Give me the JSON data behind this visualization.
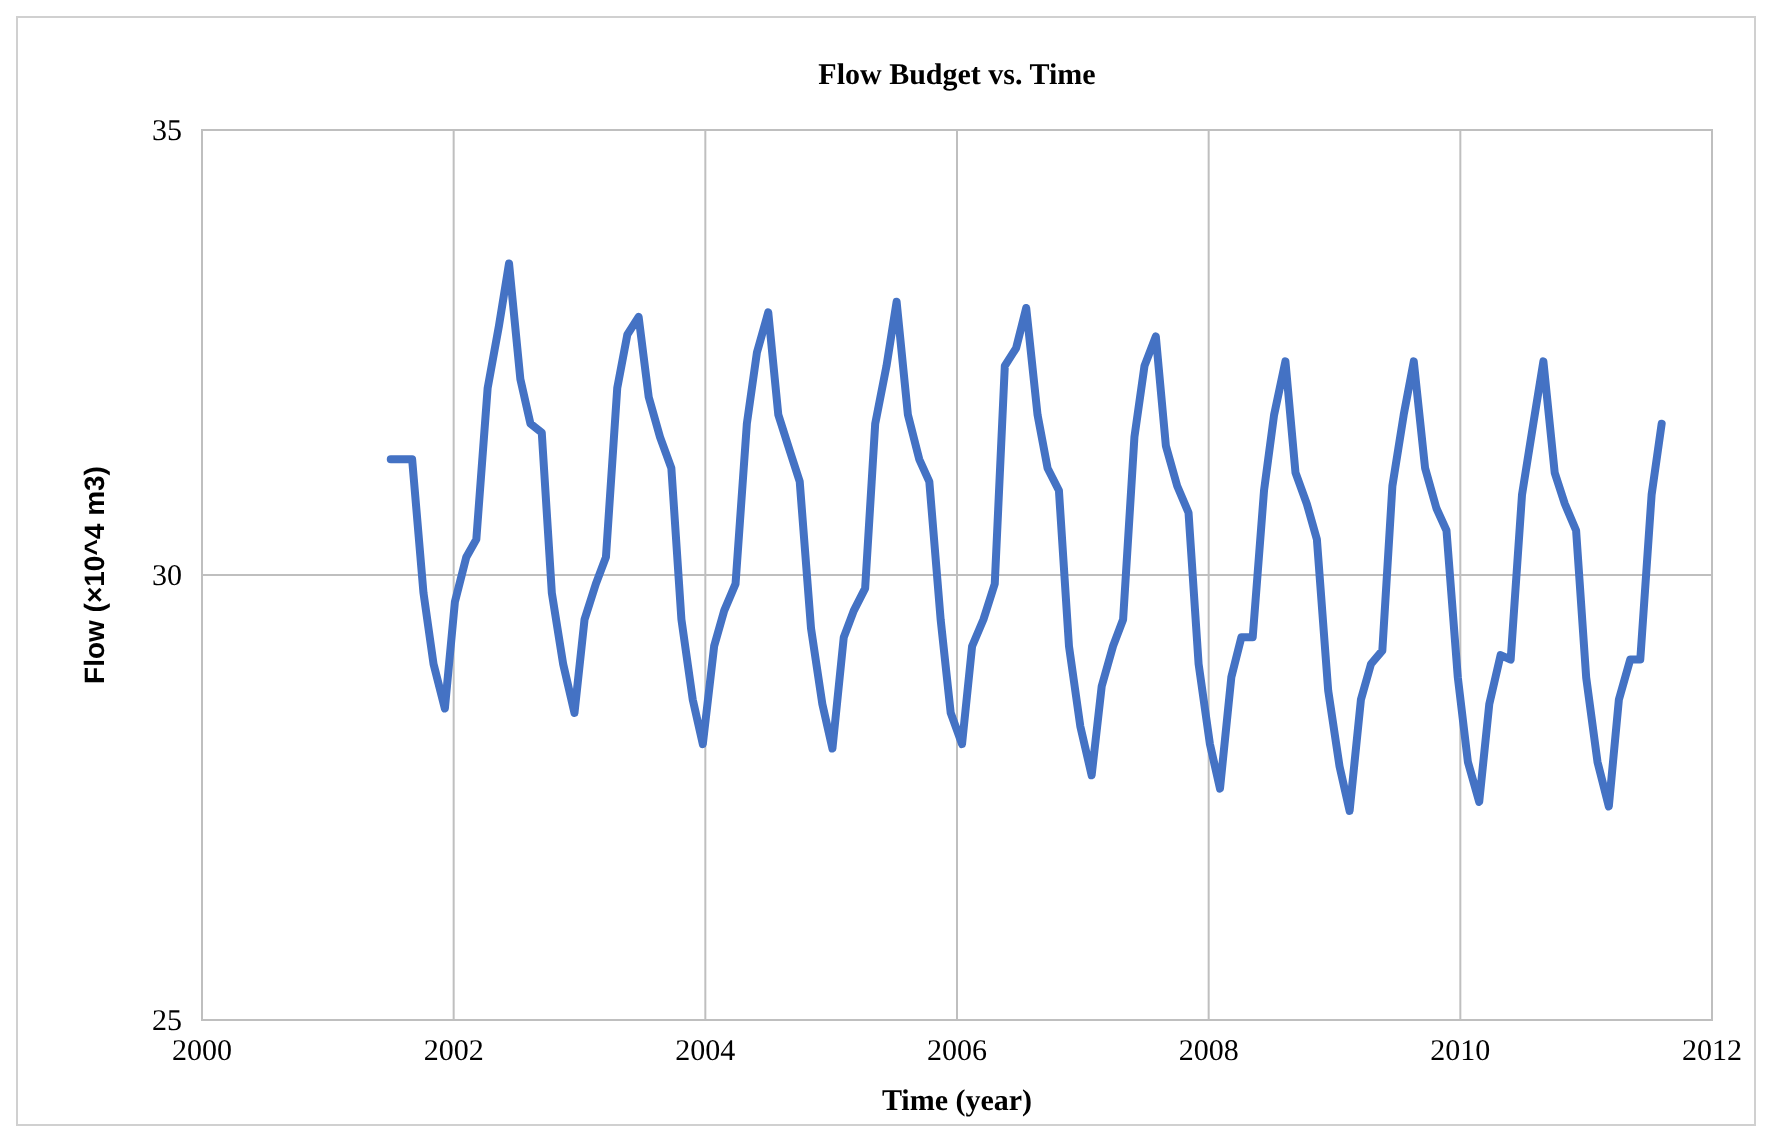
{
  "chart_data": {
    "type": "line",
    "title": "Flow Budget vs. Time",
    "xlabel": "Time (year)",
    "ylabel": "Flow (×10^4  m3)",
    "x": [
      2001.5,
      2001.67,
      2001.76,
      2001.84,
      2001.93,
      2002.01,
      2002.1,
      2002.18,
      2002.27,
      2002.36,
      2002.44,
      2002.53,
      2002.61,
      2002.7,
      2002.78,
      2002.87,
      2002.96,
      2003.04,
      2003.13,
      2003.21,
      2003.3,
      2003.38,
      2003.47,
      2003.55,
      2003.64,
      2003.73,
      2003.81,
      2003.9,
      2003.98,
      2004.07,
      2004.15,
      2004.24,
      2004.33,
      2004.41,
      2004.5,
      2004.58,
      2004.67,
      2004.75,
      2004.84,
      2004.93,
      2005.01,
      2005.1,
      2005.18,
      2005.27,
      2005.35,
      2005.44,
      2005.52,
      2005.61,
      2005.7,
      2005.78,
      2005.87,
      2005.95,
      2006.04,
      2006.12,
      2006.21,
      2006.3,
      2006.38,
      2006.47,
      2006.55,
      2006.64,
      2006.72,
      2006.81,
      2006.89,
      2006.98,
      2007.07,
      2007.15,
      2007.24,
      2007.32,
      2007.41,
      2007.49,
      2007.58,
      2007.66,
      2007.75,
      2007.84,
      2007.92,
      2008.01,
      2008.09,
      2008.18,
      2008.26,
      2008.35,
      2008.44,
      2008.52,
      2008.61,
      2008.69,
      2008.78,
      2008.86,
      2008.95,
      2009.04,
      2009.12,
      2009.21,
      2009.29,
      2009.38,
      2009.46,
      2009.55,
      2009.63,
      2009.72,
      2009.81,
      2009.89,
      2009.98,
      2010.06,
      2010.15,
      2010.23,
      2010.32,
      2010.4,
      2010.49,
      2010.58,
      2010.66,
      2010.75,
      2010.83,
      2010.92,
      2011.0,
      2011.09,
      2011.18,
      2011.26,
      2011.35,
      2011.43,
      2011.52,
      2011.6
    ],
    "series": [
      {
        "color": "#4472c4",
        "values": [
          31.3,
          31.3,
          29.8,
          29.0,
          28.5,
          29.7,
          30.2,
          30.4,
          32.1,
          32.8,
          33.5,
          32.2,
          31.7,
          31.6,
          29.8,
          29.0,
          28.45,
          29.5,
          29.9,
          30.2,
          32.1,
          32.7,
          32.9,
          32.0,
          31.55,
          31.2,
          29.5,
          28.6,
          28.1,
          29.2,
          29.6,
          29.9,
          31.7,
          32.5,
          32.95,
          31.8,
          31.4,
          31.05,
          29.4,
          28.55,
          28.05,
          29.3,
          29.6,
          29.85,
          31.7,
          32.35,
          33.07,
          31.8,
          31.3,
          31.05,
          29.5,
          28.45,
          28.1,
          29.2,
          29.5,
          29.9,
          32.35,
          32.55,
          33.0,
          31.8,
          31.2,
          30.95,
          29.2,
          28.3,
          27.75,
          28.75,
          29.2,
          29.5,
          31.55,
          32.35,
          32.68,
          31.45,
          31.0,
          30.7,
          29.0,
          28.1,
          27.6,
          28.85,
          29.3,
          29.3,
          30.95,
          31.8,
          32.4,
          31.15,
          30.8,
          30.4,
          28.7,
          27.85,
          27.35,
          28.6,
          29.0,
          29.15,
          31.0,
          31.8,
          32.4,
          31.2,
          30.75,
          30.5,
          28.85,
          27.9,
          27.45,
          28.55,
          29.1,
          29.05,
          30.9,
          31.7,
          32.4,
          31.15,
          30.8,
          30.5,
          28.85,
          27.9,
          27.4,
          28.6,
          29.05,
          29.05,
          30.9,
          31.7
        ]
      }
    ],
    "xlim": [
      2000,
      2012
    ],
    "xticks": [
      2000,
      2002,
      2004,
      2006,
      2008,
      2010,
      2012
    ],
    "ylim": [
      25,
      35
    ],
    "yticks": [
      25,
      30,
      35
    ],
    "grid": true,
    "marker": "none",
    "line_style": "solid"
  }
}
